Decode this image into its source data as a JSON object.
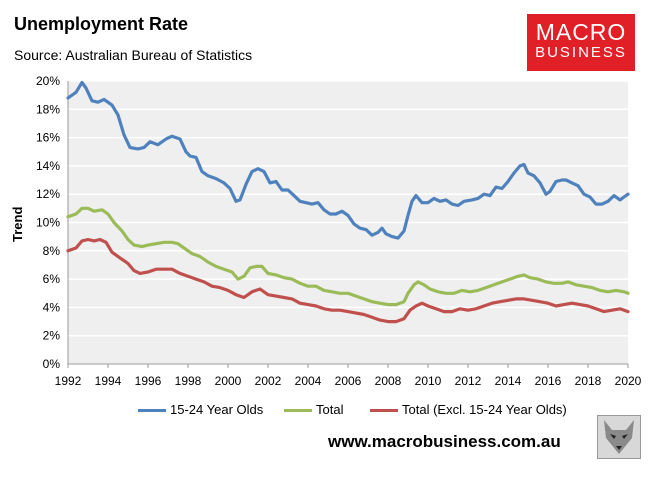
{
  "header": {
    "title": "Unemployment Rate",
    "subtitle": "Source: Australian Bureau of Statistics"
  },
  "logo": {
    "line1": "MACRO",
    "line2": "BUSINESS",
    "color": "#e01f26"
  },
  "footer": {
    "url": "www.macrobusiness.com.au",
    "icon": "wolf-icon"
  },
  "chart_data": {
    "type": "line",
    "title": "Unemployment Rate",
    "xlabel": "",
    "ylabel": "Trend",
    "xlim": [
      1992,
      2020
    ],
    "ylim": [
      0,
      20
    ],
    "x_ticks": [
      "1992",
      "1994",
      "1996",
      "1998",
      "2000",
      "2002",
      "2004",
      "2006",
      "2008",
      "2010",
      "2012",
      "2014",
      "2016",
      "2018",
      "2020"
    ],
    "y_ticks": [
      "0%",
      "2%",
      "4%",
      "6%",
      "8%",
      "10%",
      "12%",
      "14%",
      "16%",
      "18%",
      "20%"
    ],
    "grid": "horizontal",
    "legend_position": "bottom",
    "series": [
      {
        "name": "15-24 Year Olds",
        "color": "#4f81bd",
        "points": [
          [
            1992,
            18.8
          ],
          [
            1992.4,
            19.2
          ],
          [
            1992.7,
            19.9
          ],
          [
            1992.9,
            19.5
          ],
          [
            1993.2,
            18.6
          ],
          [
            1993.5,
            18.5
          ],
          [
            1993.8,
            18.7
          ],
          [
            1994.2,
            18.3
          ],
          [
            1994.5,
            17.6
          ],
          [
            1994.8,
            16.2
          ],
          [
            1995.1,
            15.3
          ],
          [
            1995.5,
            15.2
          ],
          [
            1995.8,
            15.3
          ],
          [
            1996.1,
            15.7
          ],
          [
            1996.5,
            15.5
          ],
          [
            1996.9,
            15.9
          ],
          [
            1997.2,
            16.1
          ],
          [
            1997.6,
            15.9
          ],
          [
            1997.9,
            15.0
          ],
          [
            1998.1,
            14.7
          ],
          [
            1998.4,
            14.6
          ],
          [
            1998.7,
            13.6
          ],
          [
            1999.0,
            13.3
          ],
          [
            1999.4,
            13.1
          ],
          [
            1999.8,
            12.8
          ],
          [
            2000.1,
            12.4
          ],
          [
            2000.4,
            11.5
          ],
          [
            2000.6,
            11.6
          ],
          [
            2000.9,
            12.7
          ],
          [
            2001.2,
            13.6
          ],
          [
            2001.5,
            13.8
          ],
          [
            2001.8,
            13.6
          ],
          [
            2002.1,
            12.8
          ],
          [
            2002.4,
            12.9
          ],
          [
            2002.7,
            12.3
          ],
          [
            2003.0,
            12.3
          ],
          [
            2003.3,
            11.9
          ],
          [
            2003.6,
            11.5
          ],
          [
            2003.9,
            11.4
          ],
          [
            2004.2,
            11.3
          ],
          [
            2004.5,
            11.4
          ],
          [
            2004.8,
            10.9
          ],
          [
            2005.1,
            10.6
          ],
          [
            2005.4,
            10.6
          ],
          [
            2005.7,
            10.8
          ],
          [
            2006.0,
            10.5
          ],
          [
            2006.3,
            9.9
          ],
          [
            2006.6,
            9.6
          ],
          [
            2006.9,
            9.5
          ],
          [
            2007.2,
            9.1
          ],
          [
            2007.5,
            9.3
          ],
          [
            2007.7,
            9.6
          ],
          [
            2007.9,
            9.2
          ],
          [
            2008.2,
            9.0
          ],
          [
            2008.5,
            8.9
          ],
          [
            2008.8,
            9.4
          ],
          [
            2009.0,
            10.5
          ],
          [
            2009.2,
            11.5
          ],
          [
            2009.4,
            11.9
          ],
          [
            2009.7,
            11.4
          ],
          [
            2010.0,
            11.4
          ],
          [
            2010.3,
            11.7
          ],
          [
            2010.6,
            11.5
          ],
          [
            2010.9,
            11.6
          ],
          [
            2011.2,
            11.3
          ],
          [
            2011.5,
            11.2
          ],
          [
            2011.8,
            11.5
          ],
          [
            2012.2,
            11.6
          ],
          [
            2012.5,
            11.7
          ],
          [
            2012.8,
            12.0
          ],
          [
            2013.1,
            11.9
          ],
          [
            2013.4,
            12.5
          ],
          [
            2013.7,
            12.4
          ],
          [
            2014.0,
            12.9
          ],
          [
            2014.3,
            13.5
          ],
          [
            2014.6,
            14.0
          ],
          [
            2014.8,
            14.1
          ],
          [
            2015.0,
            13.5
          ],
          [
            2015.3,
            13.3
          ],
          [
            2015.6,
            12.8
          ],
          [
            2015.9,
            12.0
          ],
          [
            2016.1,
            12.2
          ],
          [
            2016.4,
            12.9
          ],
          [
            2016.7,
            13.0
          ],
          [
            2016.9,
            13.0
          ],
          [
            2017.2,
            12.8
          ],
          [
            2017.5,
            12.6
          ],
          [
            2017.8,
            12.0
          ],
          [
            2018.1,
            11.8
          ],
          [
            2018.4,
            11.3
          ],
          [
            2018.7,
            11.3
          ],
          [
            2019.0,
            11.5
          ],
          [
            2019.3,
            11.9
          ],
          [
            2019.6,
            11.6
          ],
          [
            2019.8,
            11.8
          ],
          [
            2020.0,
            12.0
          ]
        ]
      },
      {
        "name": "Total",
        "color": "#9bbb59",
        "points": [
          [
            1992,
            10.4
          ],
          [
            1992.4,
            10.6
          ],
          [
            1992.7,
            11.0
          ],
          [
            1993.0,
            11.0
          ],
          [
            1993.3,
            10.8
          ],
          [
            1993.7,
            10.9
          ],
          [
            1994.0,
            10.6
          ],
          [
            1994.3,
            10.0
          ],
          [
            1994.7,
            9.4
          ],
          [
            1995.0,
            8.8
          ],
          [
            1995.3,
            8.4
          ],
          [
            1995.7,
            8.3
          ],
          [
            1996.0,
            8.4
          ],
          [
            1996.4,
            8.5
          ],
          [
            1996.8,
            8.6
          ],
          [
            1997.2,
            8.6
          ],
          [
            1997.5,
            8.5
          ],
          [
            1997.9,
            8.1
          ],
          [
            1998.2,
            7.8
          ],
          [
            1998.6,
            7.6
          ],
          [
            1999.0,
            7.2
          ],
          [
            1999.4,
            6.9
          ],
          [
            1999.8,
            6.7
          ],
          [
            2000.2,
            6.5
          ],
          [
            2000.5,
            6.0
          ],
          [
            2000.8,
            6.2
          ],
          [
            2001.1,
            6.8
          ],
          [
            2001.4,
            6.9
          ],
          [
            2001.7,
            6.9
          ],
          [
            2002.0,
            6.4
          ],
          [
            2002.4,
            6.3
          ],
          [
            2002.8,
            6.1
          ],
          [
            2003.2,
            6.0
          ],
          [
            2003.6,
            5.7
          ],
          [
            2004.0,
            5.5
          ],
          [
            2004.4,
            5.5
          ],
          [
            2004.8,
            5.2
          ],
          [
            2005.2,
            5.1
          ],
          [
            2005.6,
            5.0
          ],
          [
            2006.0,
            5.0
          ],
          [
            2006.4,
            4.8
          ],
          [
            2006.8,
            4.6
          ],
          [
            2007.2,
            4.4
          ],
          [
            2007.6,
            4.3
          ],
          [
            2008.0,
            4.2
          ],
          [
            2008.4,
            4.2
          ],
          [
            2008.8,
            4.4
          ],
          [
            2009.0,
            5.0
          ],
          [
            2009.3,
            5.6
          ],
          [
            2009.5,
            5.8
          ],
          [
            2009.8,
            5.6
          ],
          [
            2010.1,
            5.3
          ],
          [
            2010.5,
            5.1
          ],
          [
            2010.9,
            5.0
          ],
          [
            2011.3,
            5.0
          ],
          [
            2011.7,
            5.2
          ],
          [
            2012.1,
            5.1
          ],
          [
            2012.5,
            5.2
          ],
          [
            2012.9,
            5.4
          ],
          [
            2013.3,
            5.6
          ],
          [
            2013.7,
            5.8
          ],
          [
            2014.1,
            6.0
          ],
          [
            2014.5,
            6.2
          ],
          [
            2014.8,
            6.3
          ],
          [
            2015.1,
            6.1
          ],
          [
            2015.5,
            6.0
          ],
          [
            2015.9,
            5.8
          ],
          [
            2016.3,
            5.7
          ],
          [
            2016.7,
            5.7
          ],
          [
            2017.0,
            5.8
          ],
          [
            2017.4,
            5.6
          ],
          [
            2017.8,
            5.5
          ],
          [
            2018.2,
            5.4
          ],
          [
            2018.6,
            5.2
          ],
          [
            2019.0,
            5.1
          ],
          [
            2019.4,
            5.2
          ],
          [
            2019.8,
            5.1
          ],
          [
            2020.0,
            5.0
          ]
        ]
      },
      {
        "name": "Total (Excl. 15-24 Year Olds)",
        "color": "#c0504d",
        "points": [
          [
            1992,
            8.0
          ],
          [
            1992.4,
            8.2
          ],
          [
            1992.7,
            8.7
          ],
          [
            1993.0,
            8.8
          ],
          [
            1993.3,
            8.7
          ],
          [
            1993.6,
            8.8
          ],
          [
            1993.9,
            8.6
          ],
          [
            1994.2,
            7.9
          ],
          [
            1994.6,
            7.5
          ],
          [
            1995.0,
            7.1
          ],
          [
            1995.3,
            6.6
          ],
          [
            1995.6,
            6.4
          ],
          [
            1996.0,
            6.5
          ],
          [
            1996.4,
            6.7
          ],
          [
            1996.8,
            6.7
          ],
          [
            1997.2,
            6.7
          ],
          [
            1997.6,
            6.4
          ],
          [
            1998.0,
            6.2
          ],
          [
            1998.4,
            6.0
          ],
          [
            1998.8,
            5.8
          ],
          [
            1999.2,
            5.5
          ],
          [
            1999.6,
            5.4
          ],
          [
            2000.0,
            5.2
          ],
          [
            2000.4,
            4.9
          ],
          [
            2000.8,
            4.7
          ],
          [
            2001.2,
            5.1
          ],
          [
            2001.6,
            5.3
          ],
          [
            2002.0,
            4.9
          ],
          [
            2002.4,
            4.8
          ],
          [
            2002.8,
            4.7
          ],
          [
            2003.2,
            4.6
          ],
          [
            2003.6,
            4.3
          ],
          [
            2004.0,
            4.2
          ],
          [
            2004.4,
            4.1
          ],
          [
            2004.8,
            3.9
          ],
          [
            2005.2,
            3.8
          ],
          [
            2005.6,
            3.8
          ],
          [
            2006.0,
            3.7
          ],
          [
            2006.4,
            3.6
          ],
          [
            2006.8,
            3.5
          ],
          [
            2007.2,
            3.3
          ],
          [
            2007.6,
            3.1
          ],
          [
            2008.0,
            3.0
          ],
          [
            2008.4,
            3.0
          ],
          [
            2008.8,
            3.2
          ],
          [
            2009.1,
            3.8
          ],
          [
            2009.4,
            4.1
          ],
          [
            2009.7,
            4.3
          ],
          [
            2010.0,
            4.1
          ],
          [
            2010.4,
            3.9
          ],
          [
            2010.8,
            3.7
          ],
          [
            2011.2,
            3.7
          ],
          [
            2011.6,
            3.9
          ],
          [
            2012.0,
            3.8
          ],
          [
            2012.4,
            3.9
          ],
          [
            2012.8,
            4.1
          ],
          [
            2013.2,
            4.3
          ],
          [
            2013.6,
            4.4
          ],
          [
            2014.0,
            4.5
          ],
          [
            2014.4,
            4.6
          ],
          [
            2014.8,
            4.6
          ],
          [
            2015.2,
            4.5
          ],
          [
            2015.6,
            4.4
          ],
          [
            2016.0,
            4.3
          ],
          [
            2016.4,
            4.1
          ],
          [
            2016.8,
            4.2
          ],
          [
            2017.2,
            4.3
          ],
          [
            2017.6,
            4.2
          ],
          [
            2018.0,
            4.1
          ],
          [
            2018.4,
            3.9
          ],
          [
            2018.8,
            3.7
          ],
          [
            2019.2,
            3.8
          ],
          [
            2019.6,
            3.9
          ],
          [
            2020.0,
            3.7
          ]
        ]
      }
    ]
  }
}
